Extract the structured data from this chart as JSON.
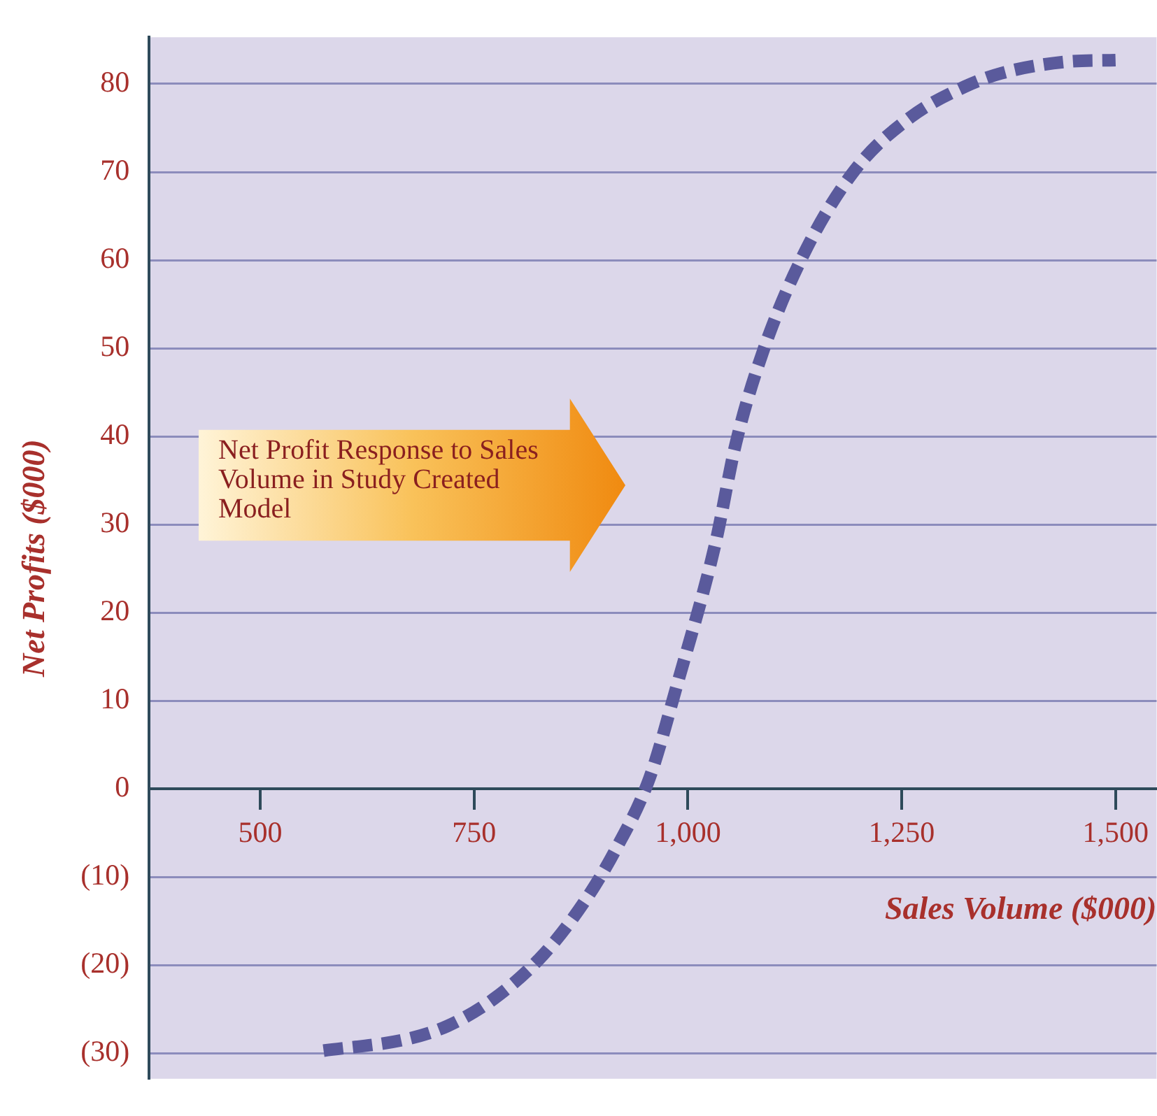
{
  "chart_data": {
    "type": "line",
    "xlabel": "Sales Volume ($000)",
    "ylabel": "Net Profits ($000)",
    "annotations": [
      "Net Profit Response to Sales Volume in Study Created Model"
    ],
    "x": [
      574,
      671,
      719,
      772,
      831,
      879,
      916,
      955,
      987,
      1032,
      1056,
      1088,
      1136,
      1195,
      1260,
      1324,
      1366,
      1441,
      1500
    ],
    "series": [
      {
        "color": "#5a5a9c",
        "values": [
          -29.7,
          -28.4,
          -26.9,
          -23.9,
          -18.8,
          -12.8,
          -6.8,
          1.2,
          11.7,
          27.8,
          39.2,
          49.7,
          60.8,
          70.2,
          76.2,
          79.7,
          81.2,
          82.5,
          82.7
        ]
      }
    ],
    "xlim": [
      370,
      1548
    ],
    "ylim": [
      -32.9,
      85.3
    ],
    "xticks": [
      500,
      750,
      {
        "value": 1000,
        "label": "1,000"
      },
      {
        "value": 1250,
        "label": "1,250"
      },
      {
        "value": 1500,
        "label": "1,500"
      }
    ],
    "yticks": [
      {
        "value": -30,
        "label": "(30)"
      },
      {
        "value": -20,
        "label": "(20)"
      },
      {
        "value": -10,
        "label": "(10)"
      },
      0,
      10,
      20,
      30,
      40,
      50,
      60,
      70,
      80
    ],
    "grid": "y",
    "legend": false,
    "marker": "none",
    "line_style": "dashed"
  }
}
